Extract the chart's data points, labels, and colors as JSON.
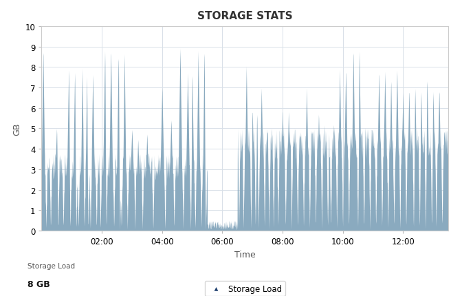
{
  "title": "STORAGE STATS",
  "xlabel": "Time",
  "ylabel": "GB",
  "ylim": [
    0,
    10
  ],
  "yticks": [
    0,
    1,
    2,
    3,
    4,
    5,
    6,
    7,
    8,
    9,
    10
  ],
  "fill_color": "#8aaabf",
  "fill_alpha": 1.0,
  "background_color": "#ffffff",
  "plot_bg_color": "#ffffff",
  "grid_color": "#d8e0e8",
  "legend_label": "Storage Load",
  "legend_marker_color": "#1e3f6e",
  "bottom_label": "Storage Load",
  "bottom_value": "8 GB",
  "title_fontsize": 11,
  "axis_fontsize": 9,
  "tick_fontsize": 8.5,
  "xtick_positions": [
    2,
    4,
    6,
    8,
    10,
    12
  ],
  "xtick_labels": [
    "02:00",
    "04:00",
    "06:00",
    "08:00",
    "10:00",
    "12:00"
  ],
  "xlim": [
    0,
    13.5
  ]
}
